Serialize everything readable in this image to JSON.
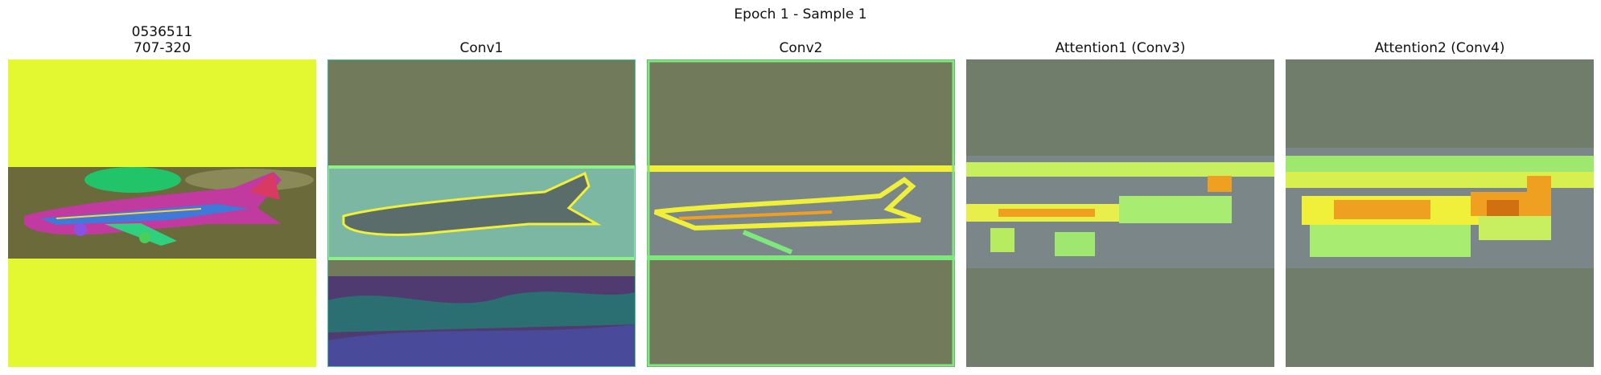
{
  "figure": {
    "title": "Epoch 1 - Sample 1",
    "panels": [
      {
        "title": "0536511\n707-320",
        "kind": "input-image"
      },
      {
        "title": "Conv1",
        "kind": "feature-map"
      },
      {
        "title": "Conv2",
        "kind": "feature-map"
      },
      {
        "title": "Attention1 (Conv3)",
        "kind": "attention-map"
      },
      {
        "title": "Attention2 (Conv4)",
        "kind": "attention-map"
      }
    ]
  },
  "colors": {
    "input_background": "#e4f831",
    "feature_background": "#717b5c",
    "attention_background": "#6f7d6a",
    "band_gray": "#7a8688",
    "highlight_yellow": "#f0ef3a",
    "highlight_orange": "#f0a020",
    "highlight_green": "#7ee87f"
  }
}
